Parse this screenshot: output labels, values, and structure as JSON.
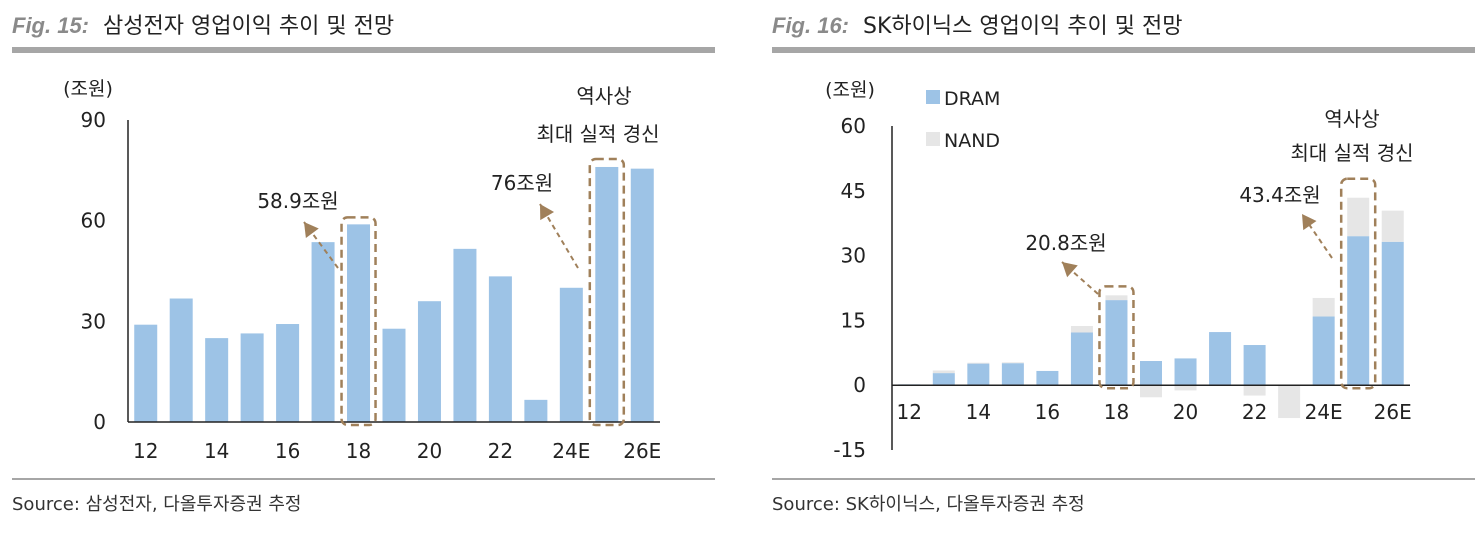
{
  "left": {
    "fig_label": "Fig. 15:",
    "title": "삼성전자 영업이익 추이 및 전망",
    "source": "Source: 삼성전자, 다올투자증권 추정",
    "chart_data": {
      "type": "bar",
      "title": "삼성전자 영업이익 추이 및 전망",
      "unit_label": "(조원)",
      "categories": [
        "12",
        "13",
        "14",
        "15",
        "16",
        "17",
        "18",
        "19",
        "20",
        "21",
        "22",
        "23",
        "24E",
        "25E",
        "26E"
      ],
      "tick_labels": [
        "12",
        "",
        "14",
        "",
        "16",
        "",
        "18",
        "",
        "20",
        "",
        "22",
        "",
        "24E",
        "",
        "26E"
      ],
      "values": [
        29.0,
        36.8,
        25.0,
        26.4,
        29.2,
        53.6,
        58.9,
        27.8,
        36.0,
        51.6,
        43.4,
        6.6,
        40.0,
        76.0,
        75.5
      ],
      "ylim": [
        0,
        90
      ],
      "yticks": [
        "0",
        "30",
        "60",
        "90"
      ],
      "bar_color": "#9dc3e6",
      "annotations": [
        {
          "text": "58.9조원",
          "target": "18"
        },
        {
          "text": "76조원",
          "target": "25E"
        },
        {
          "text_line1": "역사상",
          "text_line2": "최대 실적 경신",
          "target": "25E"
        }
      ]
    }
  },
  "right": {
    "fig_label": "Fig. 16:",
    "title": "SK하이닉스 영업이익 추이 및 전망",
    "source": "Source: SK하이닉스, 다올투자증권 추정",
    "chart_data": {
      "type": "bar",
      "stacked": true,
      "title": "SK하이닉스 영업이익 추이 및 전망",
      "unit_label": "(조원)",
      "categories": [
        "12",
        "13",
        "14",
        "15",
        "16",
        "17",
        "18",
        "19",
        "20",
        "21",
        "22",
        "23",
        "24E",
        "25E",
        "26E"
      ],
      "tick_labels": [
        "12",
        "",
        "14",
        "",
        "16",
        "",
        "18",
        "",
        "20",
        "",
        "22",
        "",
        "24E",
        "",
        "26E"
      ],
      "series": [
        {
          "name": "DRAM",
          "color": "#9dc3e6",
          "values": [
            0.2,
            2.8,
            5.0,
            5.1,
            3.3,
            12.2,
            19.7,
            5.6,
            6.2,
            12.3,
            9.3,
            0.0,
            15.9,
            34.5,
            33.2
          ]
        },
        {
          "name": "NAND",
          "color": "#e6e6e6",
          "values": [
            -0.2,
            0.6,
            0.2,
            0.2,
            0.0,
            1.5,
            1.1,
            -2.8,
            -1.2,
            0.0,
            -2.4,
            -7.6,
            4.3,
            8.9,
            7.2
          ]
        }
      ],
      "ylim": [
        -15,
        60
      ],
      "yticks": [
        "-15",
        "0",
        "15",
        "30",
        "45",
        "60"
      ],
      "legend_position": "top-left",
      "annotations": [
        {
          "text": "20.8조원",
          "target": "18"
        },
        {
          "text": "43.4조원",
          "target": "25E"
        },
        {
          "text_line1": "역사상",
          "text_line2": "최대 실적 경신",
          "target": "25E"
        }
      ]
    }
  },
  "annotation_color": "#a0805a"
}
